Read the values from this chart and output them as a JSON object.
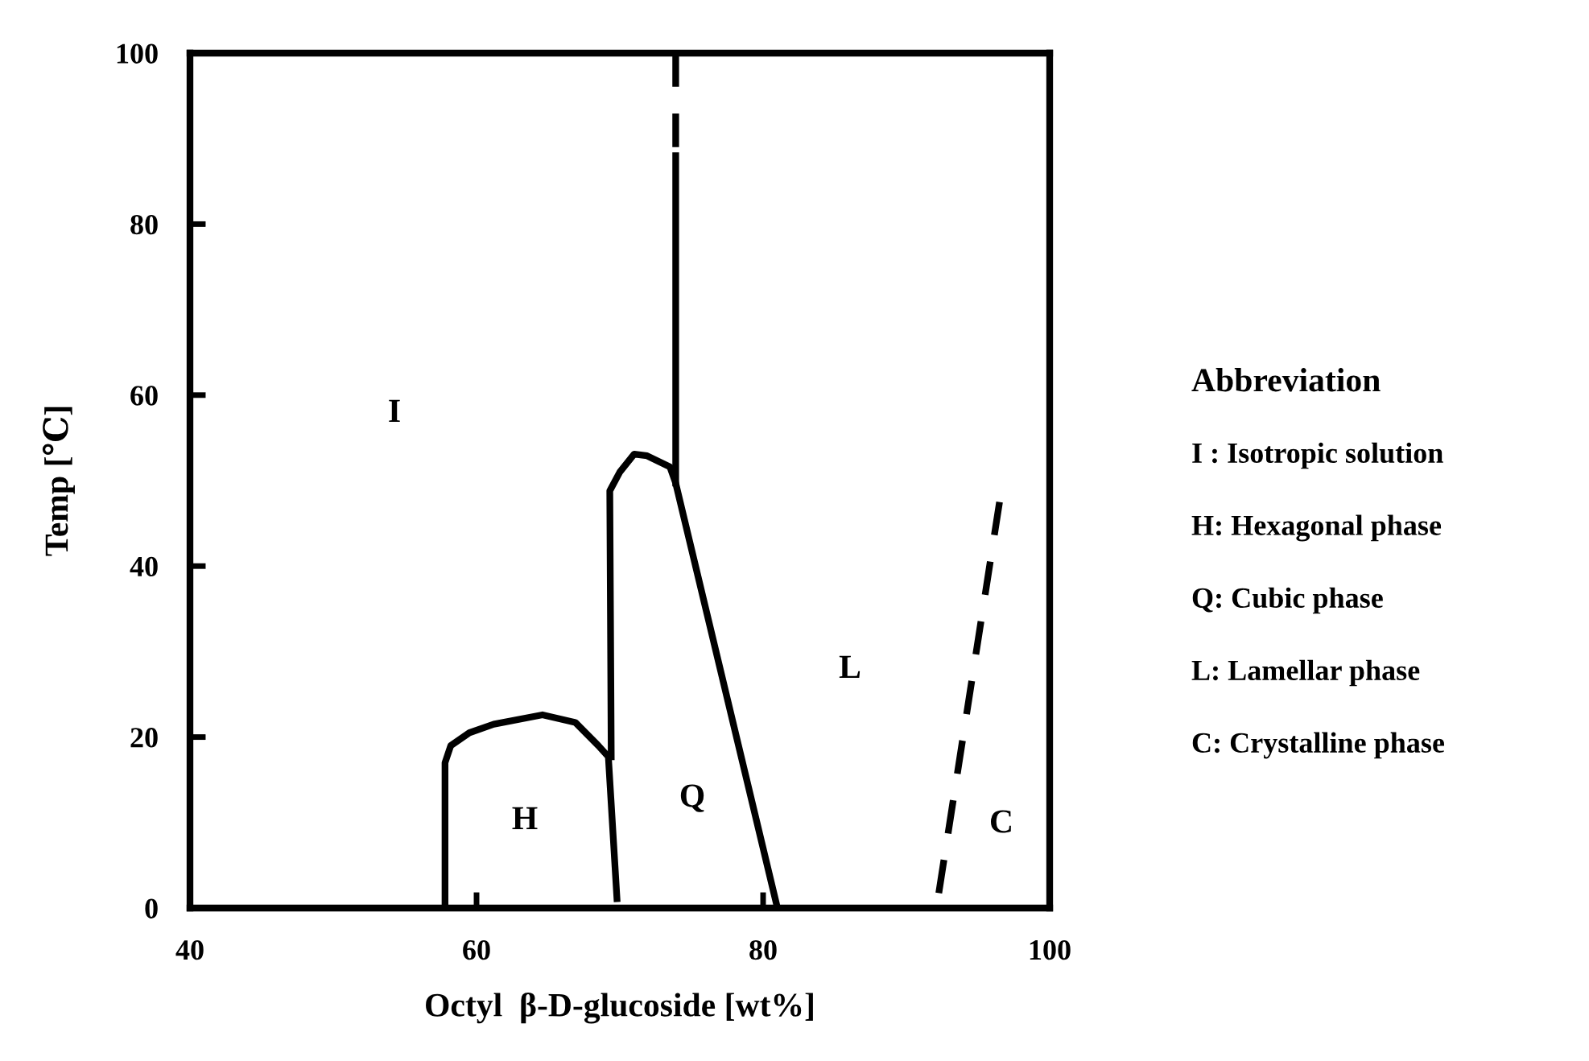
{
  "chart_data": {
    "type": "line",
    "xlabel": "Octyl  β-D-glucoside [wt%]",
    "ylabel": "Temp [℃]",
    "xlim": [
      40,
      100
    ],
    "ylim": [
      0,
      100
    ],
    "xticks": [
      40,
      60,
      80,
      100
    ],
    "yticks": [
      0,
      20,
      40,
      60,
      80,
      100
    ],
    "grid": false,
    "marker": "none",
    "series": [
      {
        "x": [
          57.8,
          57.8,
          58.2,
          59.5,
          61.2,
          64.6,
          66.9,
          68.5,
          69.2,
          69.8
        ],
        "values": [
          0,
          17,
          19,
          20.5,
          21.5,
          22.6,
          21.7,
          19,
          17.7,
          1.1
        ],
        "color": "#000000",
        "line_style": "solid"
      },
      {
        "x": [
          69.4,
          69.3,
          70,
          71,
          71.9,
          73.5,
          73.9,
          81
        ],
        "values": [
          17.7,
          48.8,
          51,
          53.1,
          52.9,
          51.6,
          49.7,
          0
        ],
        "color": "#000000",
        "line_style": "solid"
      },
      {
        "x": [
          73.9,
          73.9
        ],
        "values": [
          49.7,
          88
        ],
        "color": "#000000",
        "line_style": "solid"
      },
      {
        "x": [
          73.9,
          73.9
        ],
        "values": [
          100,
          88
        ],
        "color": "#000000",
        "line_style": "dashed"
      },
      {
        "x": [
          96.5,
          92.1
        ],
        "values": [
          47.5,
          0
        ],
        "color": "#000000",
        "line_style": "dashed"
      }
    ],
    "annotations": [
      "I",
      "H",
      "Q",
      "L",
      "C",
      "Abbreviation",
      "I : Isotropic solution",
      "H: Hexagonal phase",
      "Q: Cubic phase",
      "L: Lamellar phase",
      "C: Crystalline phase"
    ]
  }
}
